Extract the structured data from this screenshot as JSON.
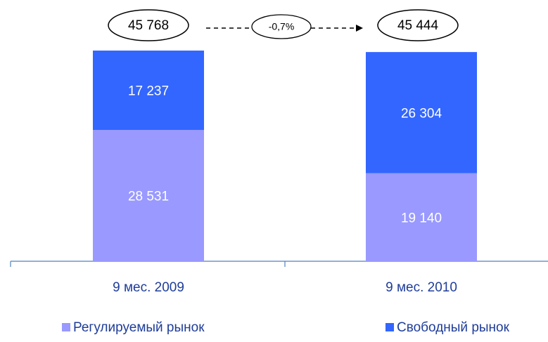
{
  "chart_data": {
    "type": "stacked_bar",
    "categories": [
      "9 мес. 2009",
      "9 мес. 2010"
    ],
    "series": [
      {
        "name": "Регулируемый рынок",
        "color": "#9999ff",
        "values": [
          28531,
          19140
        ],
        "value_labels": [
          "28 531",
          "19 140"
        ]
      },
      {
        "name": "Свободный рынок",
        "color": "#3366ff",
        "values": [
          17237,
          26304
        ],
        "value_labels": [
          "17 237",
          "26 304"
        ]
      }
    ],
    "totals": {
      "values": [
        45768,
        45444
      ],
      "value_labels": [
        "45 768",
        "45 444"
      ]
    },
    "change": {
      "value": -0.7,
      "label": "-0,7%"
    }
  }
}
